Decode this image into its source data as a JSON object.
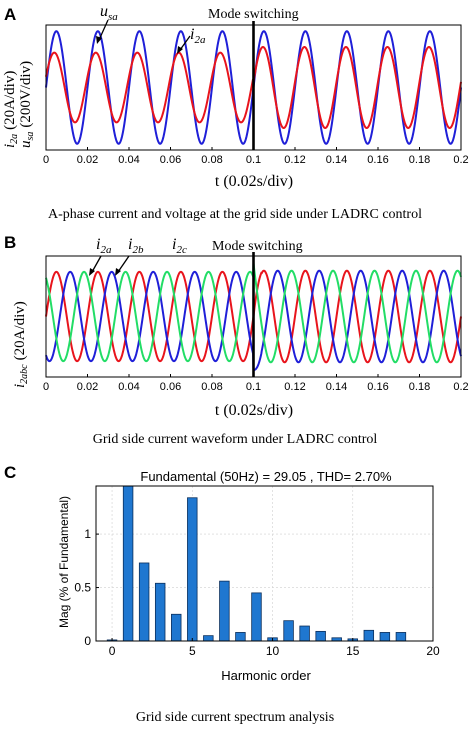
{
  "panels": [
    {
      "letter": "A",
      "caption": "A-phase current and voltage at the grid side under LADRC control",
      "annotation": "Mode switching",
      "ylabel_current": "i",
      "ylabel_current_sub": "2a",
      "ylabel_current_unit": "(20A/div)",
      "ylabel_voltage": "u",
      "ylabel_voltage_sub": "sa",
      "ylabel_voltage_unit": "(200V/div)",
      "xlabel": "t (0.02s/div)",
      "series_labels": [
        {
          "main": "u",
          "sub": "sa"
        },
        {
          "main": "i",
          "sub": "2a"
        }
      ]
    },
    {
      "letter": "B",
      "caption": "Grid side current waveform under LADRC control",
      "annotation": "Mode switching",
      "ylabel_current": "i",
      "ylabel_current_sub": "2abc",
      "ylabel_current_unit": "(20A/div)",
      "xlabel": "t (0.02s/div)",
      "series_labels": [
        {
          "main": "i",
          "sub": "2a"
        },
        {
          "main": "i",
          "sub": "2b"
        },
        {
          "main": "i",
          "sub": "2c"
        }
      ]
    },
    {
      "letter": "C",
      "caption": "Grid side current spectrum analysis"
    }
  ],
  "chart_data": [
    {
      "type": "line",
      "title": "",
      "xlabel": "t (0.02s/div)",
      "ylabel": "i2a (20A/div) usa (200V/div)",
      "x_ticks": [
        "0",
        "0.02",
        "0.04",
        "0.06",
        "0.08",
        "0.1",
        "0.12",
        "0.14",
        "0.16",
        "0.18",
        "0.2"
      ],
      "xlim": [
        0,
        0.2
      ],
      "switch_time": 0.1,
      "frequency_hz": 50,
      "series": [
        {
          "name": "usa",
          "color": "#1f1fd8",
          "amplitude": 1.0,
          "phase_deg": 0
        },
        {
          "name": "i2a",
          "color": "#e8141c",
          "amplitude_before": 0.62,
          "amplitude_after": 0.72,
          "phase_deg_before": 18,
          "phase_deg_after": 8
        }
      ]
    },
    {
      "type": "line",
      "title": "",
      "xlabel": "t (0.02s/div)",
      "ylabel": "i2abc (20A/div)",
      "x_ticks": [
        "0",
        "0.02",
        "0.04",
        "0.06",
        "0.08",
        "0.1",
        "0.12",
        "0.14",
        "0.16",
        "0.18",
        "0.2"
      ],
      "xlim": [
        0,
        0.2
      ],
      "switch_time": 0.1,
      "frequency_hz": 50,
      "series": [
        {
          "name": "i2a",
          "color": "#e8141c",
          "phase_deg": 0
        },
        {
          "name": "i2b",
          "color": "#1f1fd8",
          "phase_deg": -120
        },
        {
          "name": "i2c",
          "color": "#22dd66",
          "phase_deg": 120
        }
      ]
    },
    {
      "type": "bar",
      "title": "Fundamental (50Hz) = 29.05 , THD= 2.70%",
      "xlabel": "Harmonic order",
      "ylabel": "Mag (% of Fundamental)",
      "xlim": [
        -1,
        20
      ],
      "ylim": [
        0,
        1.45
      ],
      "x_ticks": [
        "0",
        "5",
        "10",
        "15",
        "20"
      ],
      "y_ticks": [
        "0",
        "0.5",
        "1"
      ],
      "grid": true,
      "bar_color": "#1f77d0",
      "categories": [
        0,
        1,
        2,
        3,
        4,
        5,
        6,
        7,
        8,
        9,
        10,
        11,
        12,
        13,
        14,
        15,
        16,
        17,
        18
      ],
      "values": [
        0.01,
        1.45,
        0.73,
        0.54,
        0.25,
        1.34,
        0.05,
        0.56,
        0.08,
        0.45,
        0.03,
        0.19,
        0.14,
        0.09,
        0.03,
        0.02,
        0.1,
        0.08,
        0.08
      ]
    }
  ]
}
